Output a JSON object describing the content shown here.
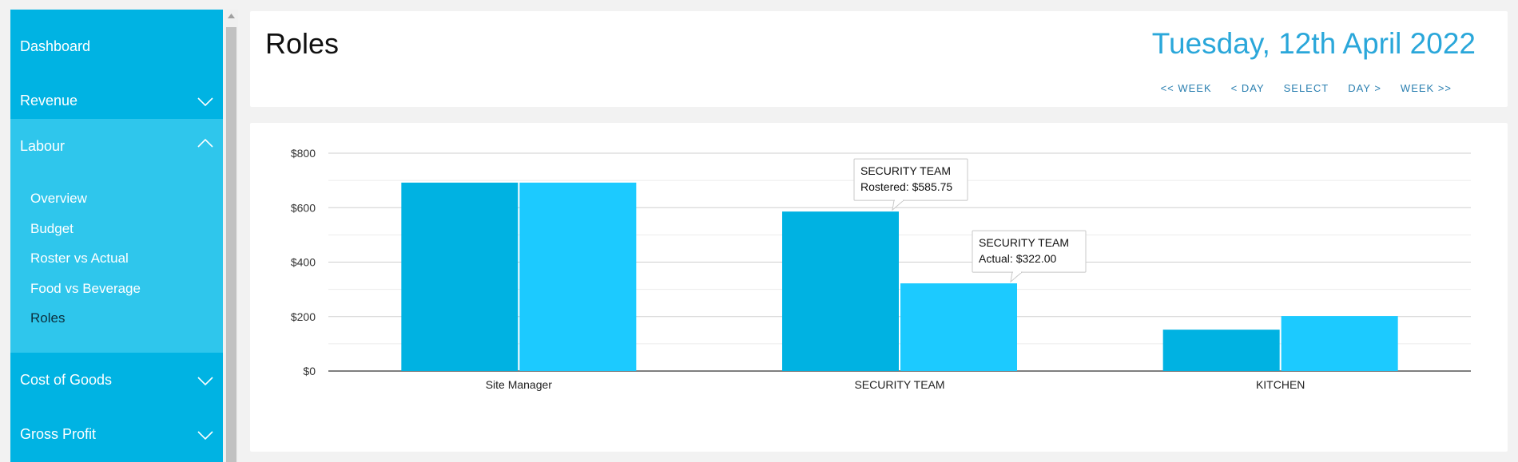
{
  "sidebar": {
    "items": [
      {
        "label": "Dashboard"
      },
      {
        "label": "Revenue"
      },
      {
        "label": "Labour"
      },
      {
        "label": "Cost of Goods"
      },
      {
        "label": "Gross Profit"
      }
    ],
    "labour_sub": [
      {
        "label": "Overview"
      },
      {
        "label": "Budget"
      },
      {
        "label": "Roster vs Actual"
      },
      {
        "label": "Food vs Beverage"
      },
      {
        "label": "Roles"
      }
    ]
  },
  "header": {
    "title": "Roles",
    "date": "Tuesday, 12th April 2022",
    "nav": {
      "prev_week": "<< WEEK",
      "prev_day": "< DAY",
      "select": "SELECT",
      "next_day": "DAY >",
      "next_week": "WEEK >>"
    }
  },
  "colors": {
    "sidebar": "#00b3e3",
    "sidebar_open": "#2fc6ec",
    "rostered": "#00b2e2",
    "actual": "#1ccaff",
    "date": "#2aa7da"
  },
  "chart_data": {
    "type": "bar",
    "categories": [
      "Site Manager",
      "SECURITY TEAM",
      "KITCHEN"
    ],
    "series": [
      {
        "name": "Rostered",
        "values": [
          692,
          585.75,
          152
        ]
      },
      {
        "name": "Actual",
        "values": [
          692,
          322.0,
          202
        ]
      }
    ],
    "ylim": [
      0,
      800
    ],
    "yticks": [
      "$0",
      "$200",
      "$400",
      "$600",
      "$800"
    ],
    "grid": true,
    "tooltips": [
      {
        "category": "SECURITY TEAM",
        "line1": "SECURITY TEAM",
        "line2": "Rostered: $585.75"
      },
      {
        "category": "SECURITY TEAM",
        "line1": "SECURITY TEAM",
        "line2": "Actual: $322.00"
      }
    ]
  }
}
